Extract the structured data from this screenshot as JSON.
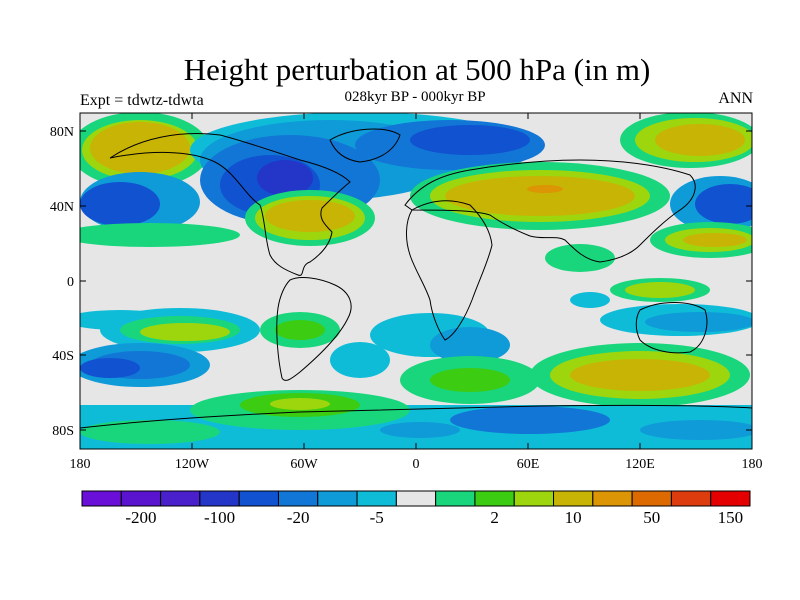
{
  "header": {
    "title": "Height perturbation at 500 hPa (in m)",
    "subtitle": "028kyr BP - 000kyr BP",
    "left_label": "Expt = tdwtz-tdwta",
    "right_label": "ANN"
  },
  "map": {
    "projection": "cylindrical-equidistant",
    "lon_range": [
      -180,
      180
    ],
    "lat_range": [
      -90,
      90
    ],
    "x_ticks": [
      "180",
      "120W",
      "60W",
      "0",
      "60E",
      "120E",
      "180"
    ],
    "y_ticks": [
      "80N",
      "40N",
      "0",
      "40S",
      "80S"
    ],
    "field": "500 hPa geopotential height difference (m)",
    "background_color": "#e6e6e6"
  },
  "colorbar": {
    "labels": [
      "-200",
      "-100",
      "-20",
      "-5",
      "2",
      "10",
      "50",
      "150"
    ],
    "colors": [
      "#6a0fd8",
      "#5a14d0",
      "#4a20cc",
      "#2336c8",
      "#1052d0",
      "#1276d6",
      "#0f9ad8",
      "#0fbcd8",
      "#e6e6e6",
      "#19d67c",
      "#3ccc12",
      "#9ed60e",
      "#c8b405",
      "#dc9504",
      "#dd6a00",
      "#dd3d0e",
      "#e40000"
    ]
  }
}
